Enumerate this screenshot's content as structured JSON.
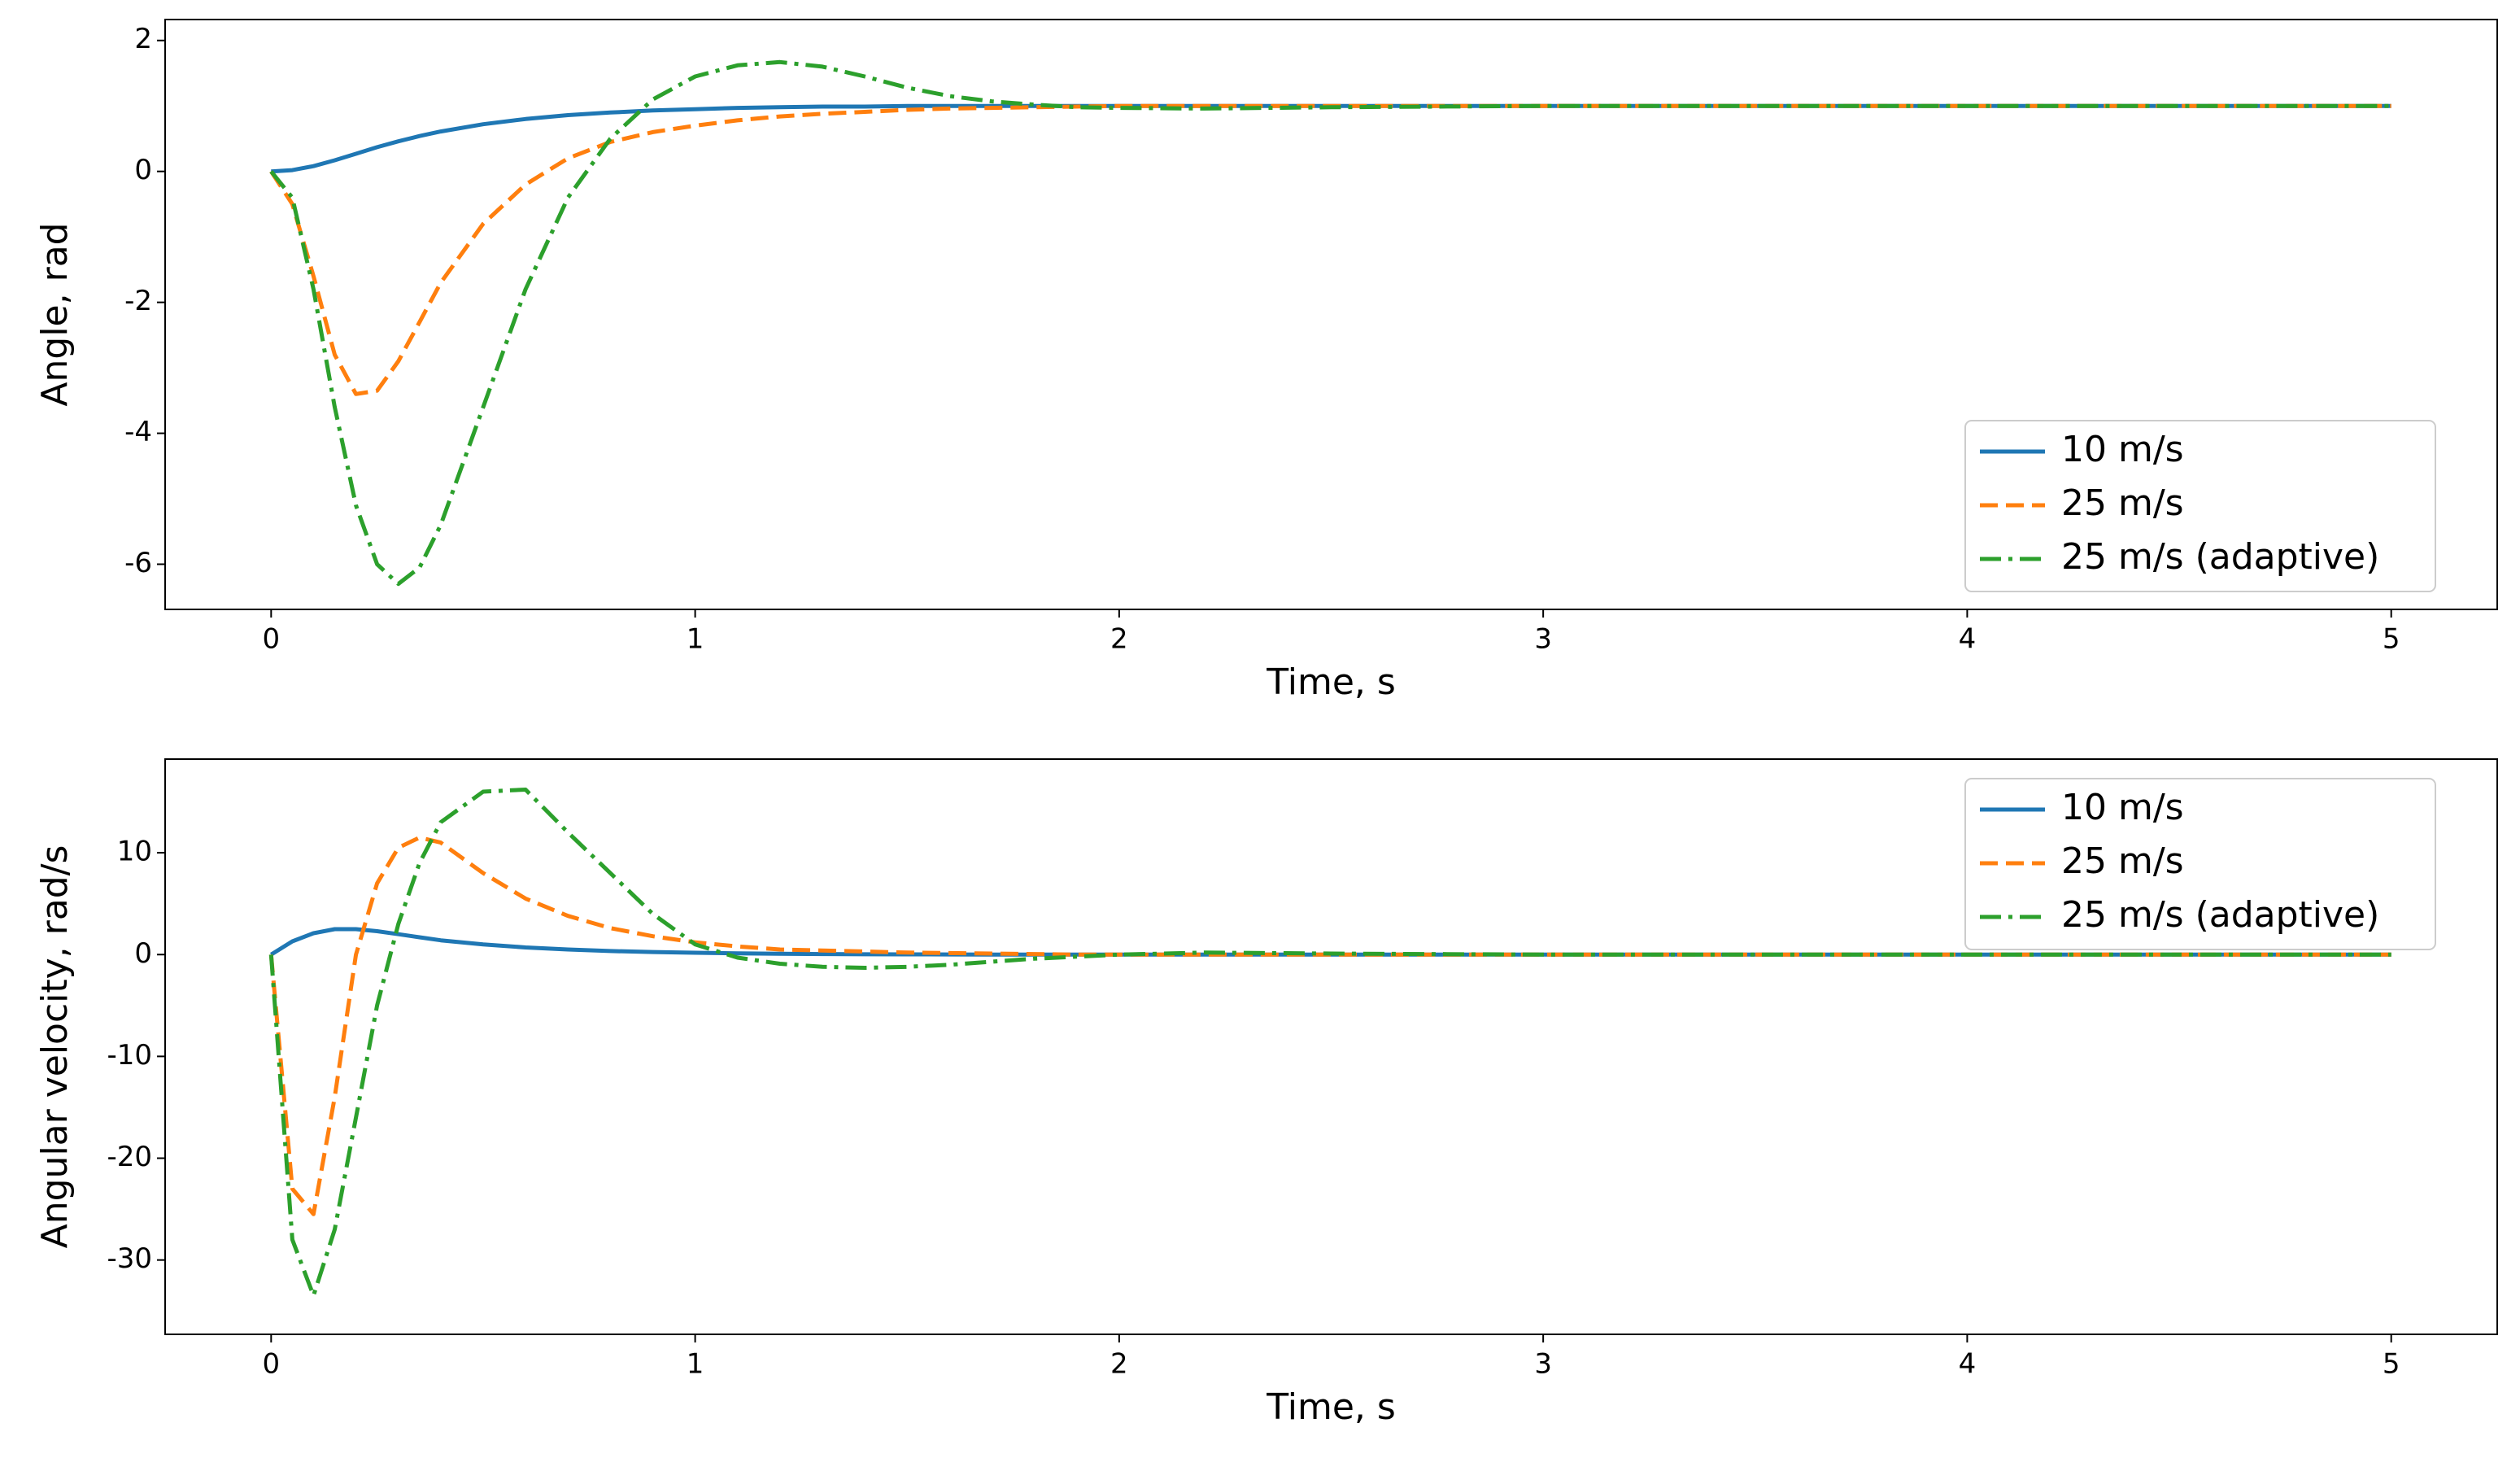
{
  "chart_data": [
    {
      "type": "line",
      "xlabel": "Time, s",
      "ylabel": "Angle, rad",
      "xlim": [
        -0.25,
        5.25
      ],
      "ylim": [
        -6.69,
        2.32
      ],
      "xticks": [
        0,
        1,
        2,
        3,
        4,
        5
      ],
      "yticks": [
        -6,
        -4,
        -2,
        0,
        2
      ],
      "grid": false,
      "legend": "lower right",
      "x": [
        0,
        0.05,
        0.1,
        0.15,
        0.2,
        0.25,
        0.3,
        0.35,
        0.4,
        0.5,
        0.6,
        0.7,
        0.8,
        0.9,
        1.0,
        1.1,
        1.2,
        1.3,
        1.4,
        1.5,
        1.6,
        1.7,
        1.8,
        1.9,
        2.0,
        2.2,
        2.5,
        3,
        3.5,
        4,
        4.5,
        5
      ],
      "series": [
        {
          "name": "10 m/s",
          "color": "#1f77b4",
          "dash": "solid",
          "values": [
            0,
            0.02,
            0.08,
            0.17,
            0.27,
            0.37,
            0.46,
            0.54,
            0.61,
            0.72,
            0.8,
            0.86,
            0.9,
            0.93,
            0.95,
            0.97,
            0.98,
            0.99,
            0.99,
            1,
            1,
            1,
            1,
            1,
            1,
            1,
            1,
            1,
            1,
            1,
            1,
            1
          ]
        },
        {
          "name": "25 m/s",
          "color": "#ff7f0e",
          "dash": "dashed",
          "values": [
            0,
            -0.5,
            -1.6,
            -2.8,
            -3.4,
            -3.35,
            -2.9,
            -2.3,
            -1.7,
            -0.8,
            -0.2,
            0.2,
            0.45,
            0.6,
            0.7,
            0.78,
            0.84,
            0.88,
            0.91,
            0.94,
            0.96,
            0.97,
            0.98,
            0.99,
            1,
            1,
            1,
            1,
            1,
            1,
            1,
            1
          ]
        },
        {
          "name": "25 m/s (adaptive)",
          "color": "#2ca02c",
          "dash": "dashdot",
          "values": [
            0,
            -0.4,
            -1.8,
            -3.6,
            -5.1,
            -6.0,
            -6.3,
            -6.05,
            -5.4,
            -3.6,
            -1.8,
            -0.4,
            0.5,
            1.1,
            1.45,
            1.62,
            1.67,
            1.6,
            1.45,
            1.28,
            1.15,
            1.07,
            1.02,
            0.98,
            0.97,
            0.96,
            0.98,
            1,
            1,
            1,
            1,
            1
          ]
        }
      ]
    },
    {
      "type": "line",
      "xlabel": "Time, s",
      "ylabel": "Angular velocity, rad/s",
      "xlim": [
        -0.25,
        5.25
      ],
      "ylim": [
        -37.3,
        19.2
      ],
      "xticks": [
        0,
        1,
        2,
        3,
        4,
        5
      ],
      "yticks": [
        -30,
        -20,
        -10,
        0,
        10
      ],
      "grid": false,
      "legend": "upper right",
      "x": [
        0,
        0.05,
        0.1,
        0.15,
        0.2,
        0.25,
        0.3,
        0.35,
        0.4,
        0.5,
        0.6,
        0.7,
        0.8,
        0.9,
        1.0,
        1.1,
        1.2,
        1.3,
        1.4,
        1.5,
        1.6,
        1.7,
        1.8,
        1.9,
        2.0,
        2.2,
        2.5,
        3,
        3.5,
        4,
        4.5,
        5
      ],
      "series": [
        {
          "name": "10 m/s",
          "color": "#1f77b4",
          "dash": "solid",
          "values": [
            0,
            1.3,
            2.1,
            2.5,
            2.5,
            2.3,
            2.0,
            1.7,
            1.4,
            1.0,
            0.7,
            0.5,
            0.35,
            0.25,
            0.18,
            0.12,
            0.08,
            0.05,
            0.03,
            0.02,
            0.01,
            0,
            0,
            0,
            0,
            0,
            0,
            0,
            0,
            0,
            0,
            0
          ]
        },
        {
          "name": "25 m/s",
          "color": "#ff7f0e",
          "dash": "dashed",
          "values": [
            0,
            -23,
            -25.5,
            -14,
            0,
            7,
            10.5,
            11.5,
            11,
            8,
            5.5,
            3.8,
            2.6,
            1.8,
            1.2,
            0.8,
            0.5,
            0.4,
            0.3,
            0.2,
            0.15,
            0.1,
            0.05,
            0,
            0,
            0,
            0,
            0,
            0,
            0,
            0,
            0
          ]
        },
        {
          "name": "25 m/s (adaptive)",
          "color": "#2ca02c",
          "dash": "dashdot",
          "values": [
            0,
            -28,
            -33.5,
            -27,
            -16,
            -5,
            3,
            9,
            13,
            16,
            16.2,
            12,
            8,
            4,
            1,
            -0.3,
            -0.9,
            -1.2,
            -1.3,
            -1.2,
            -1.0,
            -0.7,
            -0.4,
            -0.2,
            0,
            0.2,
            0.1,
            0,
            0,
            0,
            0,
            0
          ]
        }
      ]
    }
  ]
}
